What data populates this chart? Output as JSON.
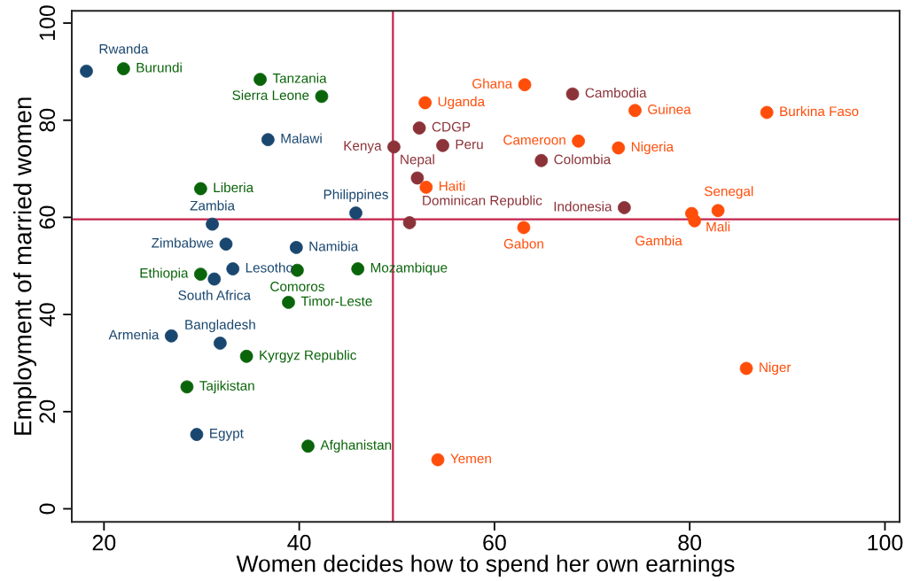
{
  "chart_data": {
    "type": "scatter",
    "xlabel": "Women decides how to spend her own earnings",
    "ylabel": "Employment of married women",
    "xlim": [
      16.7,
      101.5
    ],
    "ylim": [
      -2.7,
      102.5
    ],
    "xticks": [
      20,
      40,
      60,
      80,
      100
    ],
    "yticks": [
      0,
      20,
      40,
      60,
      80,
      100
    ],
    "marker": "circle",
    "series": [
      {
        "color": "#1a476f",
        "x": [
          18.2,
          36.8,
          45.8,
          31.1,
          32.5,
          39.7,
          33.2,
          31.3,
          26.9,
          31.9,
          29.5
        ],
        "values": [
          90.1,
          76.0,
          60.9,
          58.6,
          54.5,
          53.8,
          49.4,
          47.3,
          35.6,
          34.1,
          15.3
        ]
      },
      {
        "color": "#0a640a",
        "x": [
          22.0,
          36.0,
          42.3,
          29.9,
          39.8,
          46.0,
          29.9,
          38.9,
          34.6,
          28.5,
          40.9
        ],
        "values": [
          90.6,
          88.4,
          84.9,
          65.9,
          49.1,
          49.4,
          48.3,
          42.5,
          31.4,
          25.1,
          12.9
        ]
      },
      {
        "color": "#8b3339",
        "x": [
          52.3,
          49.7,
          54.7,
          52.1,
          51.3,
          68.0,
          64.8,
          73.3
        ],
        "values": [
          78.4,
          74.5,
          74.8,
          68.1,
          58.9,
          85.4,
          71.7,
          62.0
        ]
      },
      {
        "color": "#ff4e0a",
        "x": [
          52.9,
          53.0,
          54.2,
          63.1,
          74.4,
          87.9,
          68.6,
          72.7,
          80.2,
          82.9,
          80.5,
          63.0,
          85.8
        ],
        "values": [
          83.6,
          66.2,
          10.1,
          87.3,
          82.0,
          81.6,
          75.7,
          74.3,
          60.8,
          61.4,
          59.3,
          57.9,
          28.9
        ]
      }
    ],
    "ref_lines": [
      {
        "axis": "x",
        "value": 49.6,
        "color": "#c3234c"
      },
      {
        "axis": "y",
        "value": 59.6,
        "color": "#c3234c"
      }
    ],
    "annotations": [
      {
        "text": "Rwanda",
        "x": 18.2,
        "y": 90.1
      },
      {
        "text": "Malawi",
        "x": 36.8,
        "y": 76.0
      },
      {
        "text": "Philippines",
        "x": 45.8,
        "y": 60.9
      },
      {
        "text": "Zambia",
        "x": 31.1,
        "y": 58.6
      },
      {
        "text": "Zimbabwe",
        "x": 32.5,
        "y": 54.5
      },
      {
        "text": "Namibia",
        "x": 39.7,
        "y": 53.8
      },
      {
        "text": "Lesotho",
        "x": 33.2,
        "y": 49.4
      },
      {
        "text": "South Africa",
        "x": 31.3,
        "y": 47.3
      },
      {
        "text": "Armenia",
        "x": 26.9,
        "y": 35.6
      },
      {
        "text": "Bangladesh",
        "x": 31.9,
        "y": 34.1
      },
      {
        "text": "Egypt",
        "x": 29.5,
        "y": 15.3
      },
      {
        "text": "Burundi",
        "x": 22.0,
        "y": 90.6
      },
      {
        "text": "Tanzania",
        "x": 36.0,
        "y": 88.4
      },
      {
        "text": "Sierra Leone",
        "x": 42.3,
        "y": 84.9
      },
      {
        "text": "Liberia",
        "x": 29.9,
        "y": 65.9
      },
      {
        "text": "Comoros",
        "x": 39.8,
        "y": 49.1
      },
      {
        "text": "Mozambique",
        "x": 46.0,
        "y": 49.4
      },
      {
        "text": "Ethiopia",
        "x": 29.9,
        "y": 48.3
      },
      {
        "text": "Timor-Leste",
        "x": 38.9,
        "y": 42.5
      },
      {
        "text": "Kyrgyz Republic",
        "x": 34.6,
        "y": 31.4
      },
      {
        "text": "Tajikistan",
        "x": 28.5,
        "y": 25.1
      },
      {
        "text": "Afghanistan",
        "x": 40.9,
        "y": 12.9
      },
      {
        "text": "CDGP",
        "x": 52.3,
        "y": 78.4
      },
      {
        "text": "Kenya",
        "x": 49.7,
        "y": 74.5
      },
      {
        "text": "Peru",
        "x": 54.7,
        "y": 74.8
      },
      {
        "text": "Nepal",
        "x": 52.1,
        "y": 68.1
      },
      {
        "text": "Dominican Republic",
        "x": 51.3,
        "y": 58.9
      },
      {
        "text": "Cambodia",
        "x": 68.0,
        "y": 85.4
      },
      {
        "text": "Colombia",
        "x": 64.8,
        "y": 71.7
      },
      {
        "text": "Indonesia",
        "x": 73.3,
        "y": 62.0
      },
      {
        "text": "Uganda",
        "x": 52.9,
        "y": 83.6
      },
      {
        "text": "Haiti",
        "x": 53.0,
        "y": 66.2
      },
      {
        "text": "Yemen",
        "x": 54.2,
        "y": 10.1
      },
      {
        "text": "Ghana",
        "x": 63.1,
        "y": 87.3
      },
      {
        "text": "Guinea",
        "x": 74.4,
        "y": 82.0
      },
      {
        "text": "Burkina Faso",
        "x": 87.9,
        "y": 81.6
      },
      {
        "text": "Cameroon",
        "x": 68.6,
        "y": 75.7
      },
      {
        "text": "Nigeria",
        "x": 72.7,
        "y": 74.3
      },
      {
        "text": "Senegal",
        "x": 80.2,
        "y": 60.8
      },
      {
        "text": "Mali",
        "x": 82.9,
        "y": 61.4
      },
      {
        "text": "Gambia",
        "x": 80.5,
        "y": 59.3
      },
      {
        "text": "Gabon",
        "x": 63.0,
        "y": 57.9
      },
      {
        "text": "Niger",
        "x": 85.8,
        "y": 28.9
      }
    ]
  }
}
